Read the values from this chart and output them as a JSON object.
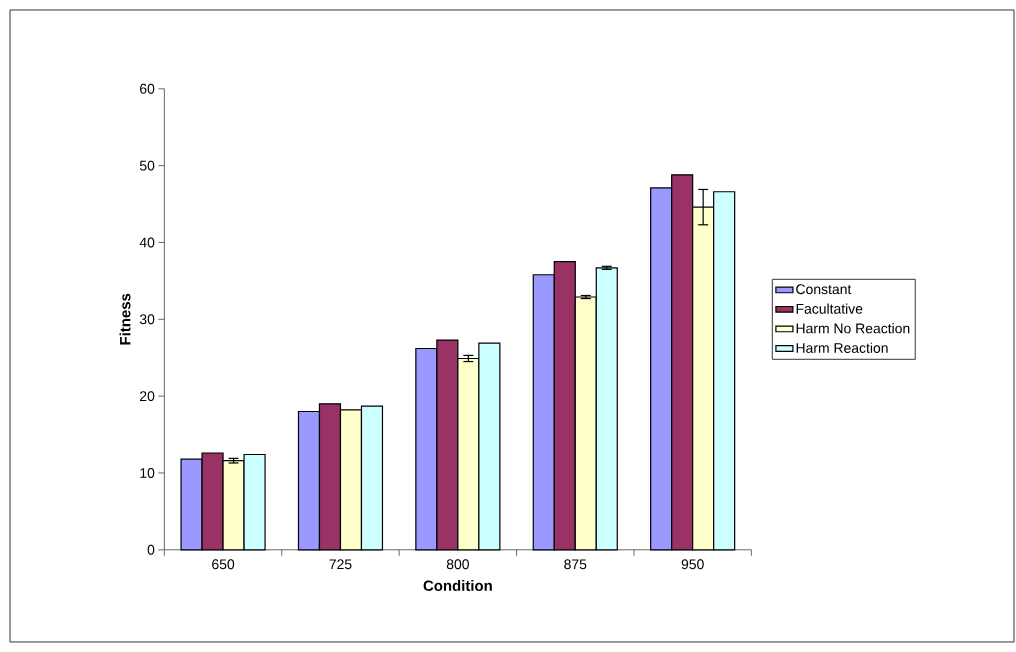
{
  "chart_data": {
    "type": "bar",
    "xlabel": "Condition",
    "ylabel": "Fitness",
    "categories": [
      "650",
      "725",
      "800",
      "875",
      "950"
    ],
    "series": [
      {
        "name": "Constant",
        "color": "#9999ff",
        "values": [
          11.8,
          18.0,
          26.2,
          35.8,
          47.1
        ]
      },
      {
        "name": "Facultative",
        "color": "#993366",
        "values": [
          12.6,
          19.0,
          27.3,
          37.5,
          48.8
        ]
      },
      {
        "name": "Harm No Reaction",
        "color": "#ffffcc",
        "values": [
          11.6,
          18.2,
          24.9,
          32.9,
          44.6
        ],
        "errors": [
          0.3,
          null,
          0.4,
          0.2,
          2.3
        ]
      },
      {
        "name": "Harm Reaction",
        "color": "#ccffff",
        "values": [
          12.4,
          18.7,
          26.9,
          36.7,
          46.6
        ],
        "errors": [
          null,
          null,
          null,
          0.2,
          null
        ]
      }
    ],
    "ylim": [
      0,
      60
    ],
    "yticks": [
      0,
      10,
      20,
      30,
      40,
      50,
      60
    ],
    "grid": false,
    "legend": "right"
  }
}
